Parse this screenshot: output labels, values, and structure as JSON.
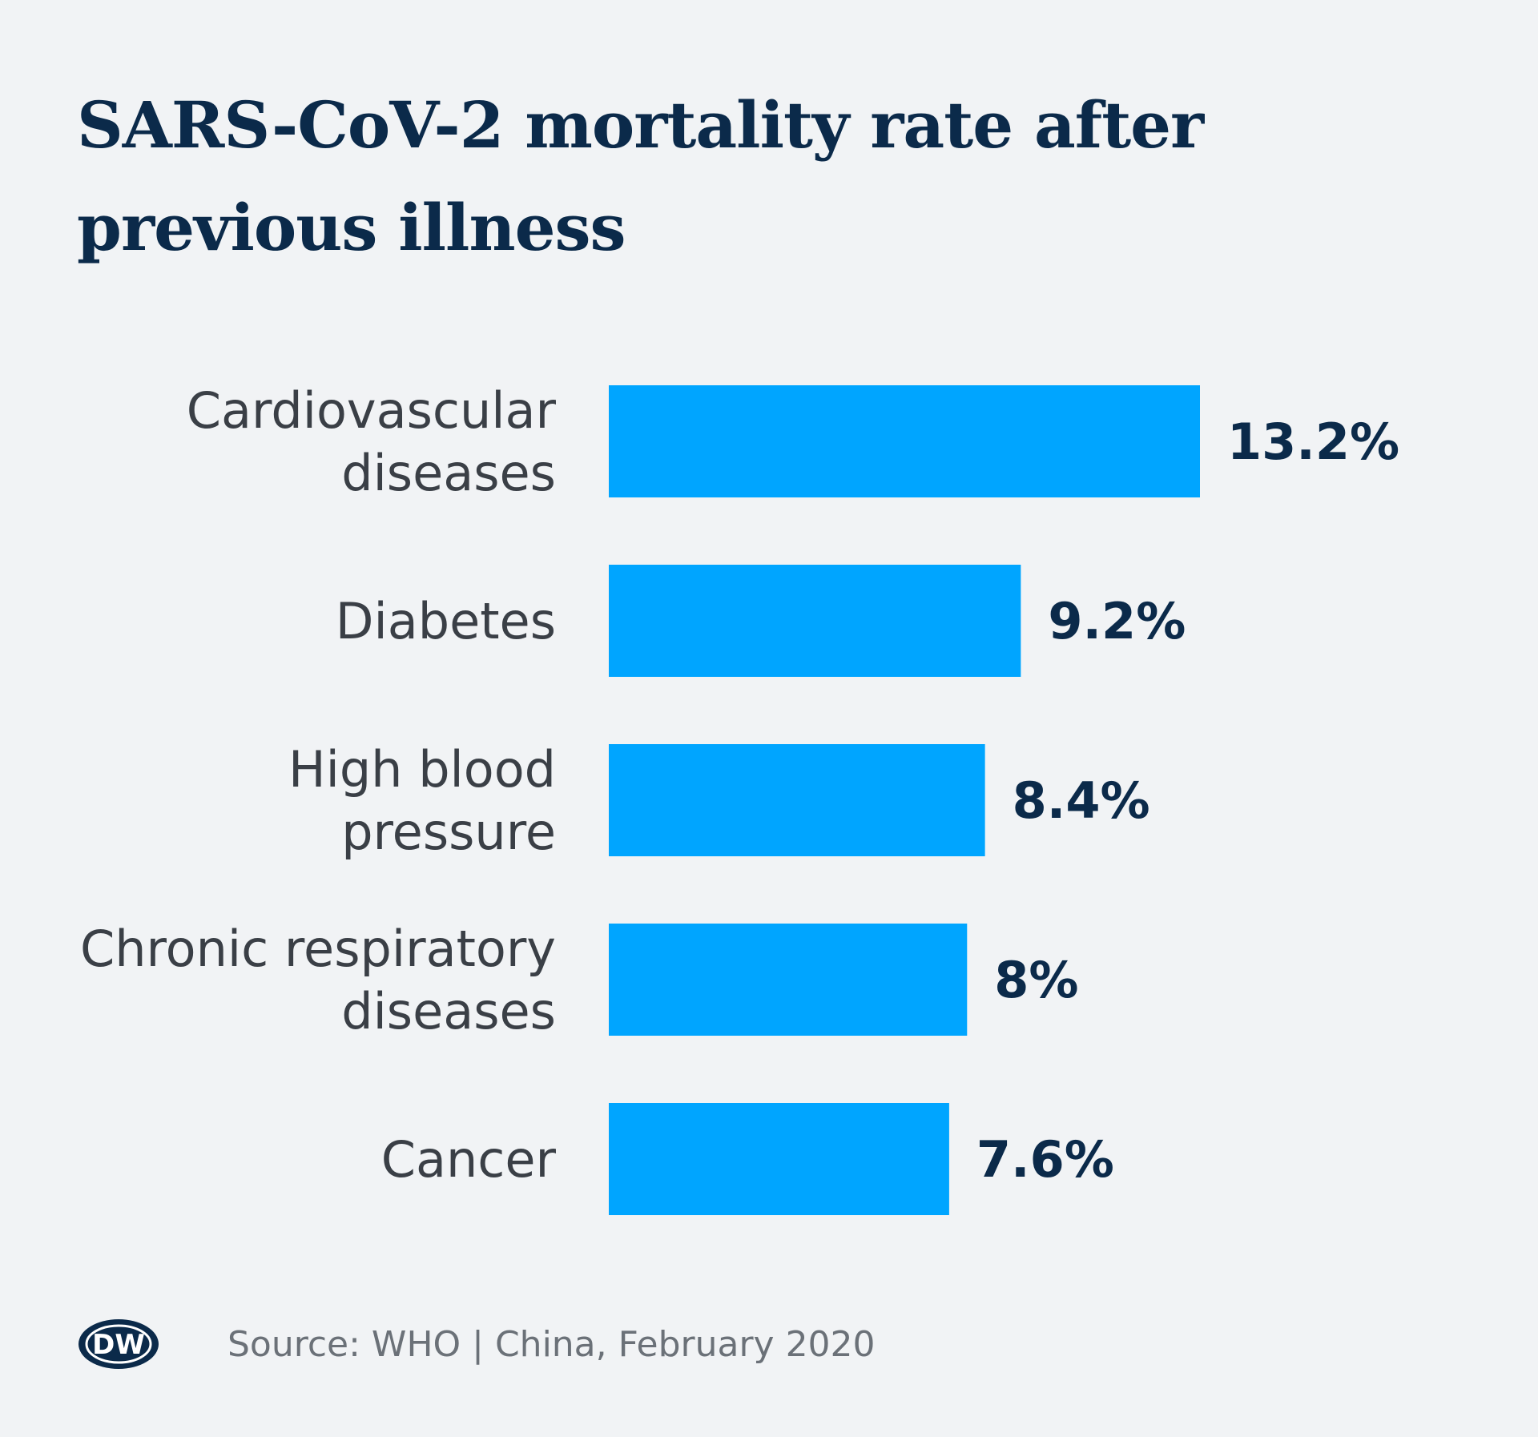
{
  "title_lines": [
    "SARS-CoV-2 mortality rate after",
    "previous illness"
  ],
  "logo_text": "DW",
  "source": "Source: WHO | China, February 2020",
  "colors": {
    "background": "#f1f3f5",
    "bar": "#00a5ff",
    "title": "#0b2a4a",
    "category_label": "#3a3f46",
    "value_label": "#0b2a4a",
    "source": "#6b7178",
    "logo": "#0b2a4a"
  },
  "chart_data": {
    "type": "bar",
    "orientation": "horizontal",
    "title": "SARS-CoV-2 mortality rate after previous illness",
    "categories": [
      [
        "Cardiovascular",
        "diseases"
      ],
      [
        "Diabetes"
      ],
      [
        "High blood",
        "pressure"
      ],
      [
        "Chronic respiratory",
        "diseases"
      ],
      [
        "Cancer"
      ]
    ],
    "values": [
      13.2,
      9.2,
      8.4,
      8,
      7.6
    ],
    "value_labels": [
      "13.2%",
      "9.2%",
      "8.4%",
      "8%",
      "7.6%"
    ],
    "unit": "%",
    "xlim": [
      0,
      13.2
    ],
    "grid": false,
    "legend": "none"
  }
}
